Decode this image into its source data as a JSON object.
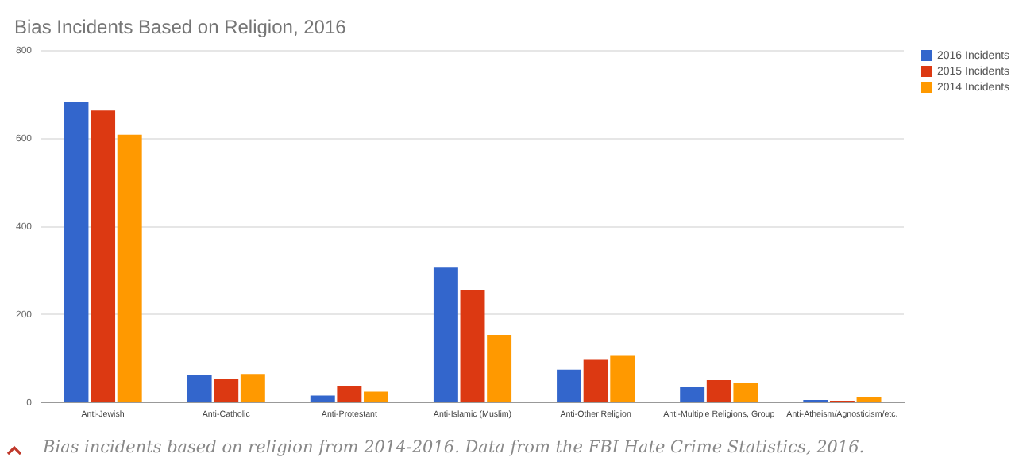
{
  "chart_data": {
    "type": "bar",
    "title": "Bias Incidents Based on Religion, 2016",
    "categories": [
      "Anti-Jewish",
      "Anti-Catholic",
      "Anti-Protestant",
      "Anti-Islamic (Muslim)",
      "Anti-Other Religion",
      "Anti-Multiple Religions, Group",
      "Anti-Atheism/Agnosticism/etc."
    ],
    "series": [
      {
        "name": "2016 Incidents",
        "color": "#3366cc",
        "values": [
          684,
          62,
          16,
          307,
          75,
          35,
          6
        ]
      },
      {
        "name": "2015 Incidents",
        "color": "#dc3912",
        "values": [
          664,
          53,
          38,
          257,
          97,
          51,
          4
        ]
      },
      {
        "name": "2014 Incidents",
        "color": "#ff9900",
        "values": [
          609,
          65,
          25,
          154,
          106,
          44,
          13
        ]
      }
    ],
    "ylim": [
      0,
      800
    ],
    "yticks": [
      0,
      200,
      400,
      600,
      800
    ],
    "grid": "y",
    "legend": "top right",
    "annotations": [
      "Bias incidents based on religion from 2014-2016. Data from the FBI Hate Crime Statistics, 2016."
    ]
  }
}
